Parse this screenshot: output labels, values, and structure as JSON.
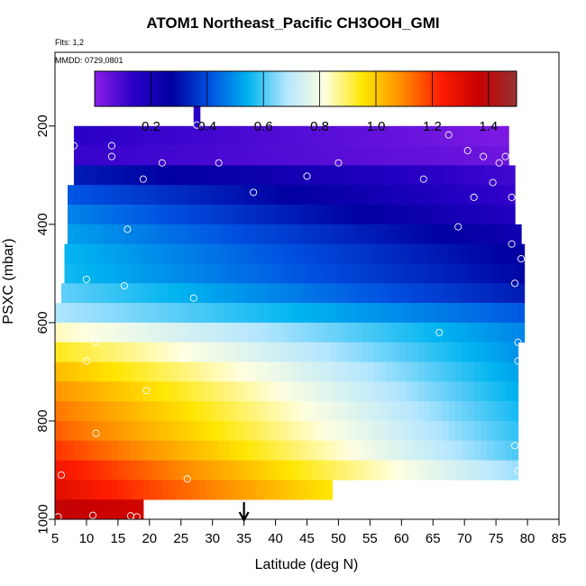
{
  "header": {
    "title": "ATOM1 Northeast_Pacific CH3OOH_GMI",
    "flights": "Flts: 1,2",
    "dates": "MMDD: 0729,0801"
  },
  "chart_data": {
    "type": "heatmap",
    "title": "ATOM1 Northeast_Pacific CH3OOH_GMI",
    "xlabel": "Latitude (deg N)",
    "ylabel": "PSXC (mbar)",
    "xlim": [
      5,
      85
    ],
    "ylim": [
      1000,
      50
    ],
    "y_reversed": true,
    "x_ticks": [
      5,
      10,
      15,
      20,
      25,
      30,
      35,
      40,
      45,
      50,
      55,
      60,
      65,
      70,
      75,
      80,
      85
    ],
    "y_ticks": [
      200,
      400,
      600,
      800,
      1000
    ],
    "colorbar": {
      "ticks": [
        0.2,
        0.4,
        0.6,
        0.8,
        1.0,
        1.2,
        1.4
      ],
      "tick_labels": [
        "0.2",
        "0.4",
        "0.6",
        "0.8",
        "1.0",
        "1.2",
        "1.4"
      ],
      "range": [
        0.0,
        1.5
      ],
      "colors": [
        "#8a1ee8",
        "#2a00c8",
        "#0000a0",
        "#0050e0",
        "#00b4f0",
        "#b4e6ff",
        "#ffffe0",
        "#ffe600",
        "#ff8c00",
        "#ff1e00",
        "#c80000",
        "#963232"
      ]
    },
    "marker_latitude": 35,
    "rows": [
      {
        "p1": 160,
        "p2": 200,
        "lat0": 27.0,
        "lat1": 28.0,
        "v0": 0.15,
        "v1": 0.15
      },
      {
        "p1": 200,
        "p2": 240,
        "lat0": 8.0,
        "lat1": 77.0,
        "v0": 0.14,
        "v1": 0.02
      },
      {
        "p1": 240,
        "p2": 280,
        "lat0": 8.0,
        "lat1": 77.0,
        "v0": 0.12,
        "v1": 0.04
      },
      {
        "p1": 280,
        "p2": 320,
        "lat0": 8.0,
        "lat1": 78.0,
        "v0": 0.32,
        "v1": 0.1
      },
      {
        "p1": 320,
        "p2": 360,
        "lat0": 7.0,
        "lat1": 78.0,
        "v0": 0.42,
        "v1": 0.12
      },
      {
        "p1": 360,
        "p2": 400,
        "lat0": 7.0,
        "lat1": 78.0,
        "v0": 0.48,
        "v1": 0.16
      },
      {
        "p1": 400,
        "p2": 440,
        "lat0": 7.0,
        "lat1": 79.0,
        "v0": 0.52,
        "v1": 0.22
      },
      {
        "p1": 440,
        "p2": 480,
        "lat0": 6.5,
        "lat1": 79.5,
        "v0": 0.55,
        "v1": 0.26
      },
      {
        "p1": 480,
        "p2": 520,
        "lat0": 6.5,
        "lat1": 79.5,
        "v0": 0.56,
        "v1": 0.28
      },
      {
        "p1": 520,
        "p2": 560,
        "lat0": 6.0,
        "lat1": 79.5,
        "v0": 0.62,
        "v1": 0.32
      },
      {
        "p1": 560,
        "p2": 600,
        "lat0": 5.0,
        "lat1": 79.5,
        "v0": 0.68,
        "v1": 0.42
      },
      {
        "p1": 600,
        "p2": 640,
        "lat0": 5.0,
        "lat1": 79.5,
        "v0": 0.84,
        "v1": 0.48
      },
      {
        "p1": 640,
        "p2": 680,
        "lat0": 5.0,
        "lat1": 78.5,
        "v0": 0.94,
        "v1": 0.5
      },
      {
        "p1": 680,
        "p2": 720,
        "lat0": 5.0,
        "lat1": 78.5,
        "v0": 1.02,
        "v1": 0.52
      },
      {
        "p1": 720,
        "p2": 760,
        "lat0": 5.0,
        "lat1": 78.5,
        "v0": 1.08,
        "v1": 0.54
      },
      {
        "p1": 760,
        "p2": 800,
        "lat0": 5.0,
        "lat1": 78.5,
        "v0": 1.12,
        "v1": 0.56
      },
      {
        "p1": 800,
        "p2": 840,
        "lat0": 5.0,
        "lat1": 78.5,
        "v0": 1.15,
        "v1": 0.58
      },
      {
        "p1": 840,
        "p2": 880,
        "lat0": 5.0,
        "lat1": 78.5,
        "v0": 1.2,
        "v1": 0.6
      },
      {
        "p1": 880,
        "p2": 920,
        "lat0": 5.0,
        "lat1": 78.5,
        "v0": 1.26,
        "v1": 0.66
      },
      {
        "p1": 920,
        "p2": 960,
        "lat0": 5.0,
        "lat1": 49.0,
        "v0": 1.3,
        "v1": 0.95
      },
      {
        "p1": 960,
        "p2": 1000,
        "lat0": 5.0,
        "lat1": 19.0,
        "v0": 1.38,
        "v1": 1.34
      }
    ],
    "points": [
      {
        "lat": 8,
        "p": 240
      },
      {
        "lat": 14,
        "p": 240
      },
      {
        "lat": 14,
        "p": 262
      },
      {
        "lat": 27.5,
        "p": 198
      },
      {
        "lat": 22,
        "p": 275
      },
      {
        "lat": 31,
        "p": 275
      },
      {
        "lat": 19,
        "p": 308
      },
      {
        "lat": 36.5,
        "p": 335
      },
      {
        "lat": 45,
        "p": 302
      },
      {
        "lat": 50,
        "p": 275
      },
      {
        "lat": 63.5,
        "p": 308
      },
      {
        "lat": 67.5,
        "p": 218
      },
      {
        "lat": 70.5,
        "p": 250
      },
      {
        "lat": 73,
        "p": 262
      },
      {
        "lat": 74.5,
        "p": 315
      },
      {
        "lat": 75.5,
        "p": 275
      },
      {
        "lat": 76.5,
        "p": 262
      },
      {
        "lat": 71.5,
        "p": 345
      },
      {
        "lat": 77.5,
        "p": 345
      },
      {
        "lat": 16.5,
        "p": 410
      },
      {
        "lat": 69,
        "p": 405
      },
      {
        "lat": 77.5,
        "p": 440
      },
      {
        "lat": 79,
        "p": 470
      },
      {
        "lat": 10,
        "p": 512
      },
      {
        "lat": 16,
        "p": 525
      },
      {
        "lat": 27,
        "p": 550
      },
      {
        "lat": 78,
        "p": 520
      },
      {
        "lat": 66,
        "p": 620
      },
      {
        "lat": 11.5,
        "p": 640
      },
      {
        "lat": 10,
        "p": 678
      },
      {
        "lat": 25.5,
        "p": 672
      },
      {
        "lat": 78.5,
        "p": 640
      },
      {
        "lat": 78.5,
        "p": 678
      },
      {
        "lat": 19.5,
        "p": 738
      },
      {
        "lat": 11.5,
        "p": 825
      },
      {
        "lat": 78,
        "p": 850
      },
      {
        "lat": 6,
        "p": 910
      },
      {
        "lat": 26,
        "p": 918
      },
      {
        "lat": 78.5,
        "p": 902
      },
      {
        "lat": 5.5,
        "p": 995
      },
      {
        "lat": 11,
        "p": 992
      },
      {
        "lat": 17,
        "p": 993
      },
      {
        "lat": 18,
        "p": 995
      }
    ]
  }
}
